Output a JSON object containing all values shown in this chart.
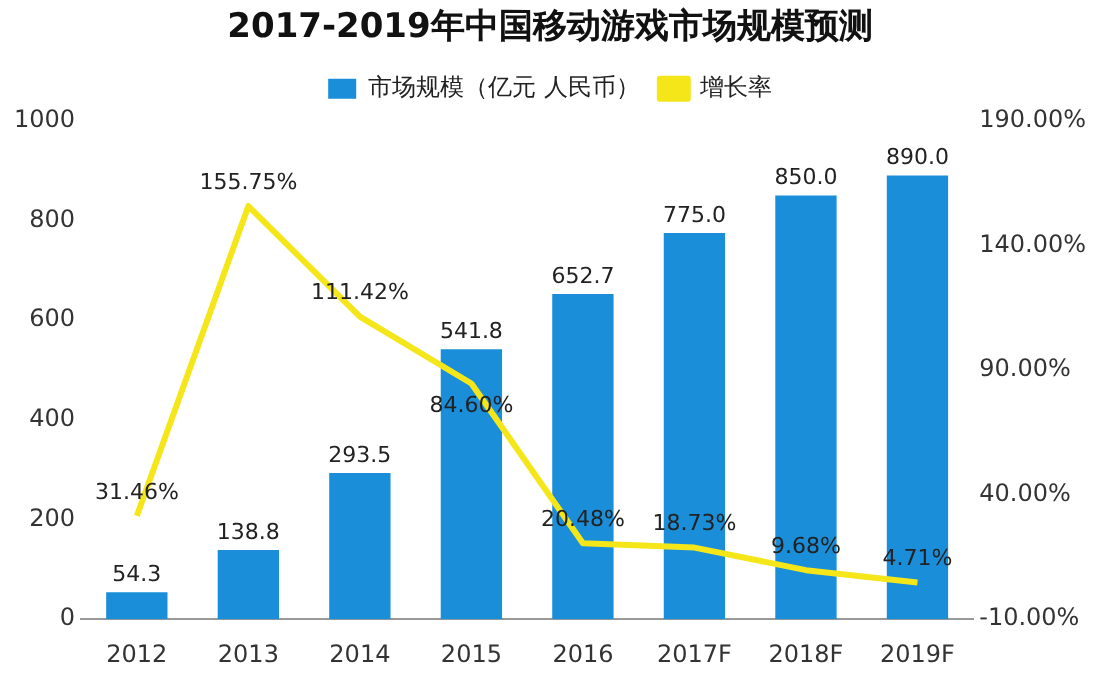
{
  "chart_data": {
    "type": "bar",
    "title": "2017-2019年中国移动游戏市场规模预测",
    "categories": [
      "2012",
      "2013",
      "2014",
      "2015",
      "2016",
      "2017F",
      "2018F",
      "2019F"
    ],
    "series": [
      {
        "name": "市场规模（亿元 人民币）",
        "color": "#1a8ed8",
        "values": [
          54.3,
          138.8,
          293.5,
          541.8,
          652.7,
          775.0,
          850.0,
          890.0
        ],
        "value_labels": [
          "54.3",
          "138.8",
          "293.5",
          "541.8",
          "652.7",
          "775.0",
          "850.0",
          "890.0"
        ]
      },
      {
        "name": "增长率",
        "type": "line",
        "axis": "y2",
        "color": "#f5e61a",
        "values": [
          31.46,
          155.75,
          111.42,
          84.6,
          20.48,
          18.73,
          9.68,
          4.71
        ],
        "value_labels": [
          "31.46%",
          "155.75%",
          "111.42%",
          "84.60%",
          "20.48%",
          "18.73%",
          "9.68%",
          "4.71%"
        ]
      }
    ],
    "ylim": [
      0,
      1000
    ],
    "yticks": [
      0,
      200,
      400,
      600,
      800,
      1000
    ],
    "y2lim": [
      -10,
      190
    ],
    "y2ticks": [
      {
        "value": -10,
        "label": "-10.00%"
      },
      {
        "value": 40,
        "label": "40.00%"
      },
      {
        "value": 90,
        "label": "90.00%"
      },
      {
        "value": 140,
        "label": "140.00%"
      },
      {
        "value": 190,
        "label": "190.00%"
      }
    ],
    "legend": "top",
    "grid": false,
    "marker": "none"
  }
}
